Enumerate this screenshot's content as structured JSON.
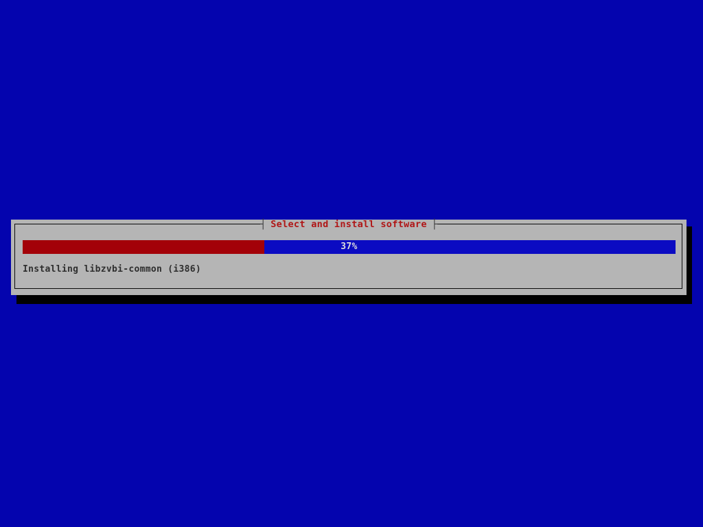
{
  "screen": {
    "background_color": "#0404ae"
  },
  "dialog": {
    "title": "Select and install software",
    "title_tick_left": "┤",
    "title_tick_right": "├",
    "title_color": "#b01616",
    "background_color": "#b5b5b5",
    "shadow_color": "#020202",
    "progress": {
      "percent": 37,
      "label": "37%",
      "fill_color": "#a30108",
      "track_color": "#0b0bc2",
      "label_color": "#dcdcdc"
    },
    "status_text": "Installing libzvbi-common (i386)"
  }
}
